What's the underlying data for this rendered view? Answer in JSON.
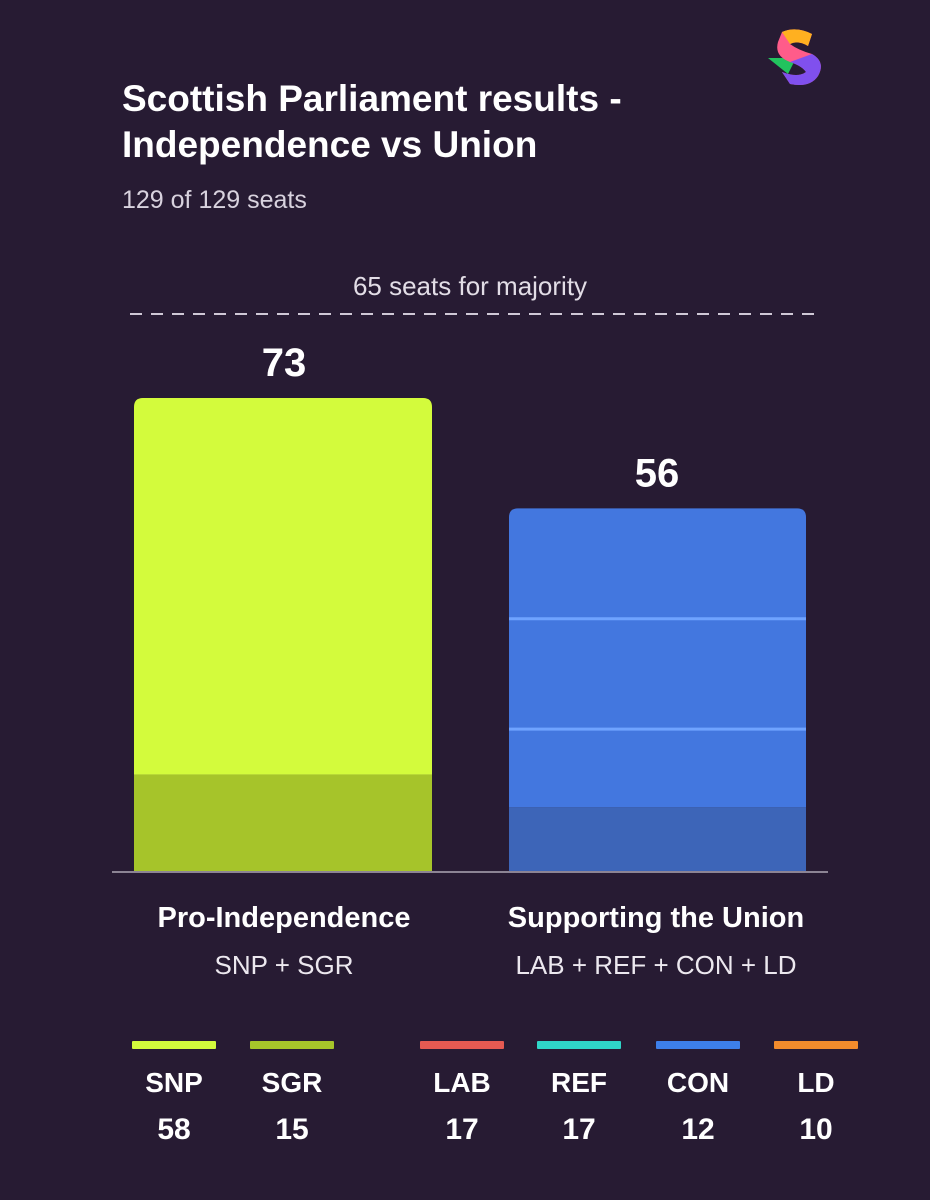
{
  "title": "Scottish Parliament results - Independence vs Union",
  "subtitle": "129 of 129 seats",
  "majority_label": "65 seats for majority",
  "logo_icon": "s-brand-logo-icon",
  "groups": [
    {
      "name": "Pro-Independence",
      "parties": "SNP + SGR"
    },
    {
      "name": "Supporting the Union",
      "parties": "LAB + REF + CON + LD"
    }
  ],
  "legend": [
    {
      "party": "SNP",
      "seats": "58",
      "color": "#d3fb3c"
    },
    {
      "party": "SGR",
      "seats": "15",
      "color": "#a6c42a"
    },
    {
      "party": "LAB",
      "seats": "17",
      "color": "#e65a52"
    },
    {
      "party": "REF",
      "seats": "17",
      "color": "#2fd6c8"
    },
    {
      "party": "CON",
      "seats": "12",
      "color": "#3d7fea"
    },
    {
      "party": "LD",
      "seats": "10",
      "color": "#f28b2c"
    }
  ],
  "chart_data": {
    "type": "bar",
    "stacked": true,
    "categories": [
      "Pro-Independence",
      "Supporting the Union"
    ],
    "totals": [
      73,
      56
    ],
    "majority_line": 65,
    "series": [
      {
        "name": "SNP",
        "values": [
          58,
          0
        ],
        "color": "#d3fb3c"
      },
      {
        "name": "SGR",
        "values": [
          15,
          0
        ],
        "color": "#a6c42a"
      },
      {
        "name": "LAB",
        "values": [
          0,
          17
        ],
        "color": "#4377df"
      },
      {
        "name": "REF",
        "values": [
          0,
          17
        ],
        "color": "#4377df"
      },
      {
        "name": "CON",
        "values": [
          0,
          12
        ],
        "color": "#4377df"
      },
      {
        "name": "LD",
        "values": [
          0,
          10
        ],
        "color": "#3d65b8"
      }
    ],
    "ylim": [
      0,
      73
    ],
    "grid": false
  }
}
